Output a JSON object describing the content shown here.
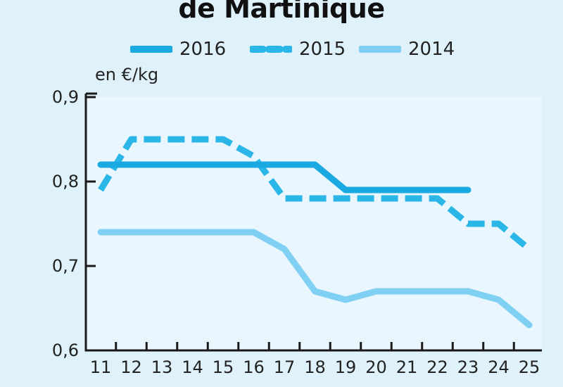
{
  "chart_data": {
    "type": "line",
    "title": "de Martinique",
    "ylabel": "en €/kg",
    "xlabel": "",
    "x": [
      11,
      12,
      13,
      14,
      15,
      16,
      17,
      18,
      19,
      20,
      21,
      22,
      23,
      24,
      25
    ],
    "x_tick_labels": [
      "11",
      "12",
      "13",
      "14",
      "15",
      "16",
      "17",
      "18",
      "19",
      "20",
      "21",
      "22",
      "23",
      "24",
      "25"
    ],
    "ylim": [
      0.6,
      0.9
    ],
    "y_ticks": [
      0.6,
      0.7,
      0.8,
      0.9
    ],
    "y_tick_labels": [
      "0,6",
      "0,7",
      "0,8",
      "0,9"
    ],
    "legend_position": "top",
    "grid": false,
    "series": [
      {
        "name": "2016",
        "style": "solid",
        "color": "#1ba9e1",
        "values": [
          0.82,
          0.82,
          0.82,
          0.82,
          0.82,
          0.82,
          0.82,
          0.82,
          0.79,
          0.79,
          0.79,
          0.79,
          0.79,
          null,
          null
        ]
      },
      {
        "name": "2015",
        "style": "dashed",
        "color": "#2bb6e8",
        "values": [
          0.79,
          0.85,
          0.85,
          0.85,
          0.85,
          0.83,
          0.78,
          0.78,
          0.78,
          0.78,
          0.78,
          0.78,
          0.75,
          0.75,
          0.72
        ]
      },
      {
        "name": "2014",
        "style": "solid",
        "color": "#7fd0f3",
        "values": [
          0.74,
          0.74,
          0.74,
          0.74,
          0.74,
          0.74,
          0.72,
          0.67,
          0.66,
          0.67,
          0.67,
          0.67,
          0.67,
          0.66,
          0.63
        ]
      }
    ]
  }
}
